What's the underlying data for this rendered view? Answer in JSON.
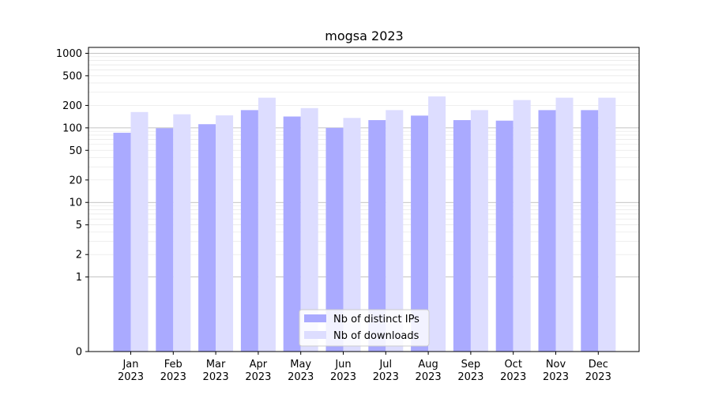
{
  "chart_data": {
    "type": "bar",
    "title": "mogsa 2023",
    "xlabel": "",
    "ylabel": "",
    "yscale": "symlog",
    "ylim": [
      0,
      1200
    ],
    "y_ticks": [
      "0",
      "1",
      "2",
      "5",
      "10",
      "20",
      "50",
      "100",
      "200",
      "500",
      "1000"
    ],
    "y_tick_values": [
      0,
      1,
      2,
      5,
      10,
      20,
      50,
      100,
      200,
      500,
      1000
    ],
    "grid": true,
    "legend_position": "lower center",
    "categories": [
      [
        "Jan",
        "2023"
      ],
      [
        "Feb",
        "2023"
      ],
      [
        "Mar",
        "2023"
      ],
      [
        "Apr",
        "2023"
      ],
      [
        "May",
        "2023"
      ],
      [
        "Jun",
        "2023"
      ],
      [
        "Jul",
        "2023"
      ],
      [
        "Aug",
        "2023"
      ],
      [
        "Sep",
        "2023"
      ],
      [
        "Oct",
        "2023"
      ],
      [
        "Nov",
        "2023"
      ],
      [
        "Dec",
        "2023"
      ]
    ],
    "series": [
      {
        "name": "Nb of distinct IPs",
        "color": "#aaaaff",
        "values": [
          86,
          99,
          112,
          173,
          142,
          100,
          127,
          146,
          127,
          125,
          173,
          173
        ]
      },
      {
        "name": "Nb of downloads",
        "color": "#ddddff",
        "values": [
          163,
          152,
          147,
          254,
          184,
          136,
          173,
          264,
          173,
          236,
          254,
          254
        ]
      }
    ]
  }
}
